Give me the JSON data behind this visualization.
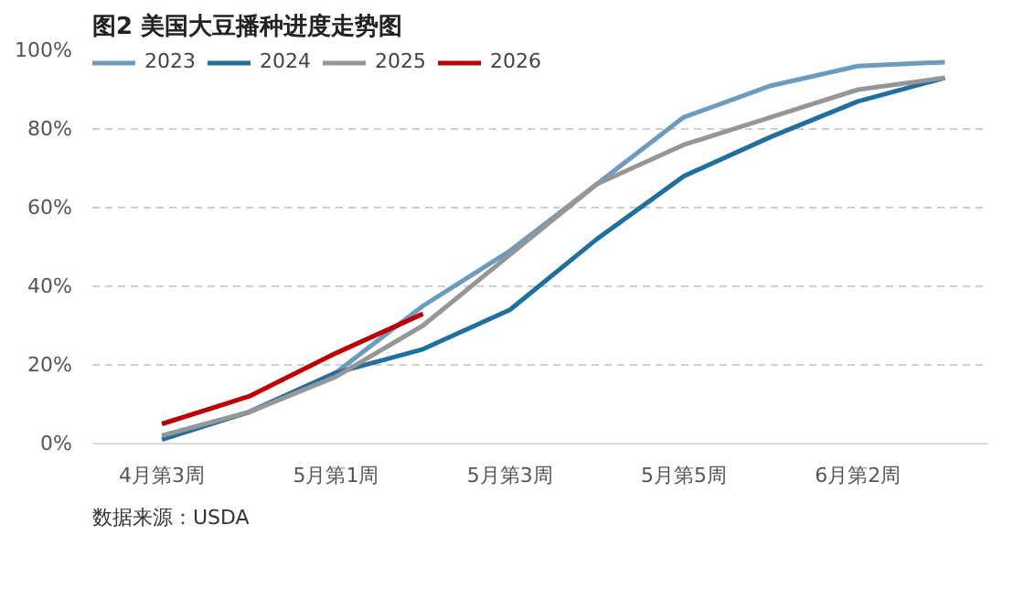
{
  "chart_data": {
    "type": "line",
    "title": "图2 美国大豆播种进度走势图",
    "annotations": [
      "数据来源：USDA"
    ],
    "categories": [
      "4月第3周",
      null,
      "5月第1周",
      null,
      "5月第3周",
      null,
      "5月第5周",
      null,
      "6月第2周",
      null
    ],
    "series": [
      {
        "name": "2023",
        "color": "#6a9cbf",
        "values": [
          2,
          8,
          18,
          35,
          49,
          66,
          83,
          91,
          96,
          97
        ]
      },
      {
        "name": "2024",
        "color": "#1f6f9f",
        "values": [
          1,
          8,
          18,
          24,
          34,
          52,
          68,
          78,
          87,
          93
        ]
      },
      {
        "name": "2025",
        "color": "#969696",
        "values": [
          2,
          8,
          17,
          30,
          48,
          66,
          76,
          83,
          90,
          93
        ]
      },
      {
        "name": "2026",
        "color": "#c00000",
        "values": [
          5,
          12,
          23,
          33,
          null,
          null,
          null,
          null,
          null,
          null
        ]
      }
    ],
    "ylim": [
      0,
      100
    ],
    "yticks": [
      {
        "value": 0,
        "label": "0%"
      },
      {
        "value": 20,
        "label": "20%"
      },
      {
        "value": 40,
        "label": "40%"
      },
      {
        "value": 60,
        "label": "60%"
      },
      {
        "value": 80,
        "label": "80%"
      },
      {
        "value": 100,
        "label": "100%"
      }
    ],
    "grid": "y",
    "legend": "top left"
  }
}
